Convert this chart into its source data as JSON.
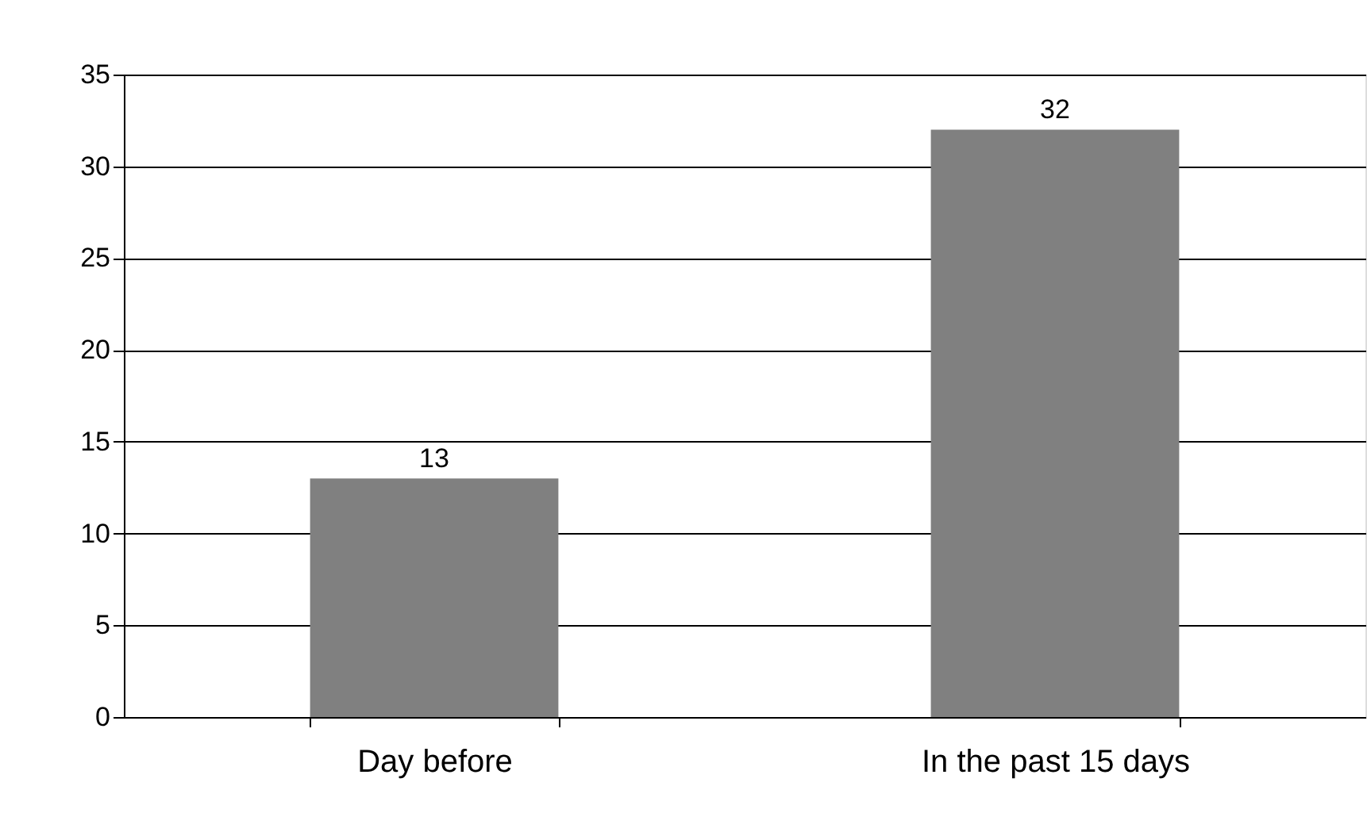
{
  "chart_data": {
    "type": "bar",
    "categories": [
      "Day before",
      "In the past 15 days"
    ],
    "values": [
      13,
      32
    ],
    "color": "#808080",
    "ylim": [
      0,
      35
    ],
    "yticks": [
      0,
      5,
      10,
      15,
      20,
      25,
      30,
      35
    ],
    "grid": "y",
    "data_labels": true
  }
}
